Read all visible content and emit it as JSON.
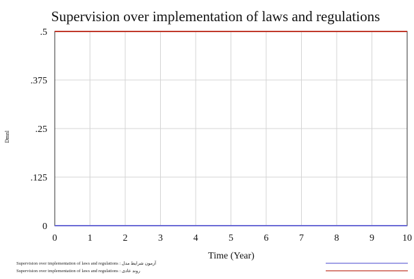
{
  "chart_data": {
    "type": "line",
    "title": "Supervision over implementation of laws and regulations",
    "xlabel": "Time (Year)",
    "ylabel": "Dmnl",
    "x": [
      0,
      1,
      2,
      3,
      4,
      5,
      6,
      7,
      8,
      9,
      10
    ],
    "xlim": [
      0,
      10
    ],
    "ylim": [
      0,
      0.5
    ],
    "xticks": [
      "0",
      "1",
      "2",
      "3",
      "4",
      "5",
      "6",
      "7",
      "8",
      "9",
      "10"
    ],
    "yticks": [
      {
        "value": 0,
        "label": "0"
      },
      {
        "value": 0.125,
        "label": ".125"
      },
      {
        "value": 0.25,
        "label": ".25"
      },
      {
        "value": 0.375,
        "label": ".375"
      },
      {
        "value": 0.5,
        "label": ".5"
      }
    ],
    "grid": true,
    "legend_position": "bottom",
    "series": [
      {
        "legend": "Supervision over implementation of laws and regulations : آزمون شرایط مدل",
        "color": "#6b6bd6",
        "values": [
          0,
          0,
          0,
          0,
          0,
          0,
          0,
          0,
          0,
          0,
          0
        ]
      },
      {
        "legend": "Supervision over implementation of laws and regulations : روند عادی",
        "color": "#c0392b",
        "values": [
          0.5,
          0.5,
          0.5,
          0.5,
          0.5,
          0.5,
          0.5,
          0.5,
          0.5,
          0.5,
          0.5
        ]
      }
    ]
  }
}
